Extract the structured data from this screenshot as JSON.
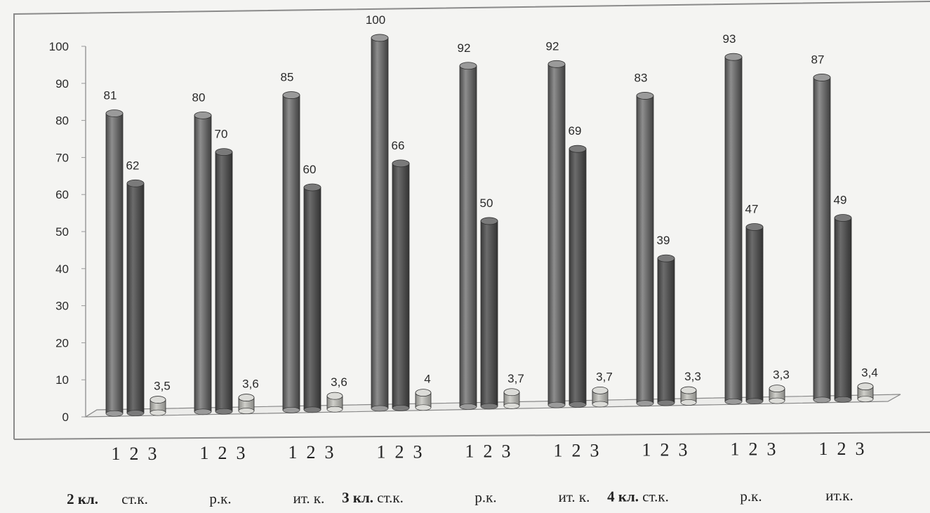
{
  "chart_data": {
    "type": "bar",
    "ylim": [
      0,
      100
    ],
    "yticks": [
      0,
      10,
      20,
      30,
      40,
      50,
      60,
      70,
      80,
      90,
      100
    ],
    "categories": [
      {
        "prefix": "2 кл.",
        "label": "ст.к."
      },
      {
        "prefix": "",
        "label": "р.к."
      },
      {
        "prefix": "",
        "label": "ит. к."
      },
      {
        "prefix": "3 кл.",
        "label": "ст.к."
      },
      {
        "prefix": "",
        "label": "р.к."
      },
      {
        "prefix": "",
        "label": "ит. к."
      },
      {
        "prefix": "4 кл.",
        "label": "ст.к."
      },
      {
        "prefix": "",
        "label": "р.к."
      },
      {
        "prefix": "",
        "label": "ит.к."
      }
    ],
    "bar_numbers": [
      "1",
      "2",
      "3"
    ],
    "series": [
      {
        "values": [
          81,
          80,
          85,
          100,
          92,
          92,
          83,
          93,
          87
        ],
        "labels": [
          "81",
          "80",
          "85",
          "100",
          "92",
          "92",
          "83",
          "93",
          "87"
        ]
      },
      {
        "values": [
          62,
          70,
          60,
          66,
          50,
          69,
          39,
          47,
          49
        ],
        "labels": [
          "62",
          "70",
          "60",
          "66",
          "50",
          "69",
          "39",
          "47",
          "49"
        ]
      },
      {
        "values": [
          3.5,
          3.6,
          3.6,
          4,
          3.7,
          3.7,
          3.3,
          3.3,
          3.4
        ],
        "labels": [
          "3,5",
          "3,6",
          "3,6",
          "4",
          "3,7",
          "3,7",
          "3,3",
          "3,3",
          "3,4"
        ]
      }
    ],
    "colors": {
      "series1": "#7d7d7d",
      "series2": "#5e5e5e",
      "series3": "#b4b4b0",
      "frame": "#8a8a8a"
    },
    "grid": false,
    "legend": "none"
  }
}
